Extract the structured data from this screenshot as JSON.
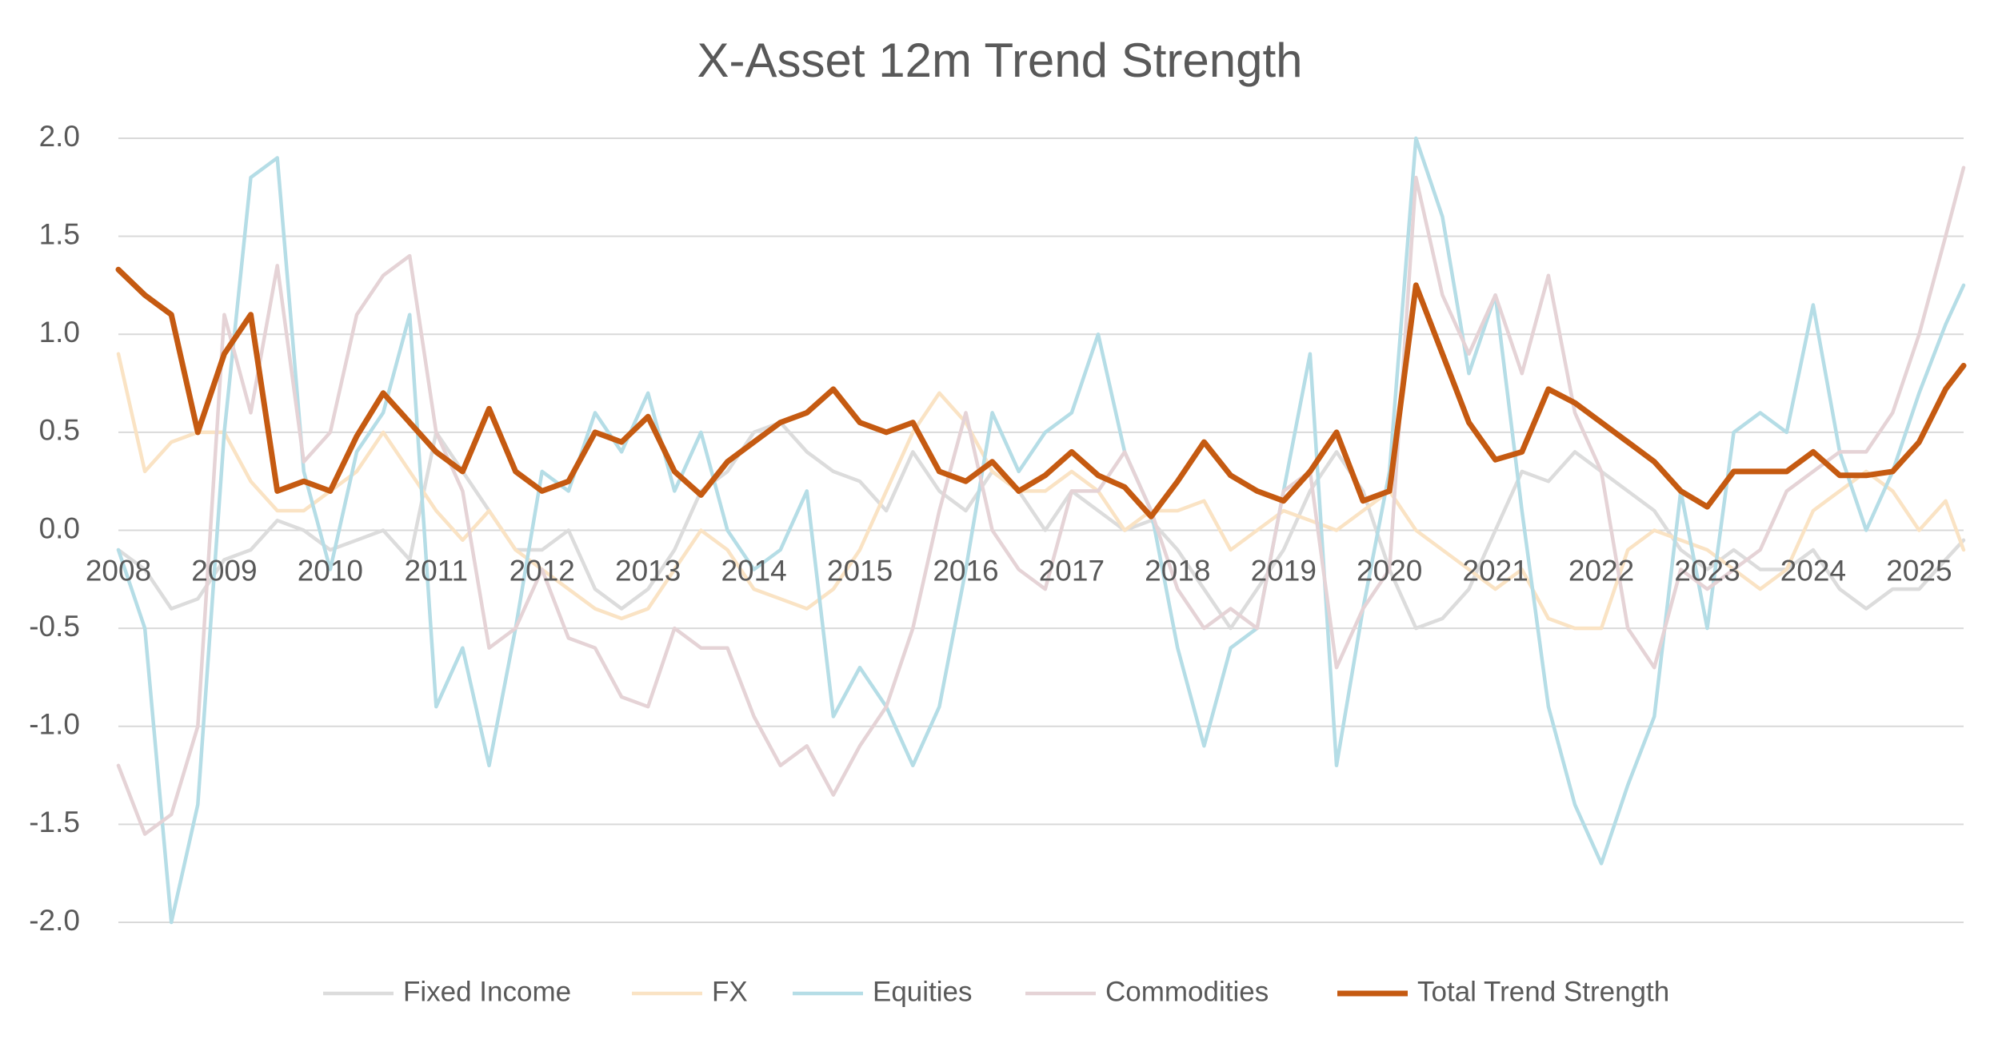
{
  "chart_data": {
    "type": "line",
    "title": "X-Asset 12m Trend Strength",
    "x": [
      2008,
      2008.25,
      2008.5,
      2008.75,
      2009,
      2009.25,
      2009.5,
      2009.75,
      2010,
      2010.25,
      2010.5,
      2010.75,
      2011,
      2011.25,
      2011.5,
      2011.75,
      2012,
      2012.25,
      2012.5,
      2012.75,
      2013,
      2013.25,
      2013.5,
      2013.75,
      2014,
      2014.25,
      2014.5,
      2014.75,
      2015,
      2015.25,
      2015.5,
      2015.75,
      2016,
      2016.25,
      2016.5,
      2016.75,
      2017,
      2017.25,
      2017.5,
      2017.75,
      2018,
      2018.25,
      2018.5,
      2018.75,
      2019,
      2019.25,
      2019.5,
      2019.75,
      2020,
      2020.25,
      2020.5,
      2020.75,
      2021,
      2021.25,
      2021.5,
      2021.75,
      2022,
      2022.25,
      2022.5,
      2022.75,
      2023,
      2023.25,
      2023.5,
      2023.75,
      2024,
      2024.25,
      2024.5,
      2024.75,
      2025,
      2025.25,
      2025.42
    ],
    "xlim": [
      2008,
      2025.42
    ],
    "xticks": [
      2008,
      2009,
      2010,
      2011,
      2012,
      2013,
      2014,
      2015,
      2016,
      2017,
      2018,
      2019,
      2020,
      2021,
      2022,
      2023,
      2024,
      2025
    ],
    "ylim": [
      -2,
      2
    ],
    "yticks": [
      {
        "value": -2,
        "label": "-2.0"
      },
      -1.5,
      {
        "value": -1,
        "label": "-1.0"
      },
      -0.5,
      {
        "value": 0,
        "label": "0.0"
      },
      0.5,
      {
        "value": 1,
        "label": "1.0"
      },
      1.5,
      {
        "value": 2,
        "label": "2.0"
      }
    ],
    "grid": true,
    "legend": "bottom",
    "series": [
      {
        "name": "Fixed Income",
        "color": "#dcdcdc",
        "values": [
          -0.1,
          -0.2,
          -0.4,
          -0.35,
          -0.15,
          -0.1,
          0.05,
          0.0,
          -0.1,
          -0.05,
          0.0,
          -0.15,
          0.5,
          0.3,
          0.1,
          -0.1,
          -0.1,
          0.0,
          -0.3,
          -0.4,
          -0.3,
          -0.1,
          0.2,
          0.3,
          0.5,
          0.55,
          0.4,
          0.3,
          0.25,
          0.1,
          0.4,
          0.2,
          0.1,
          0.3,
          0.2,
          0.0,
          0.2,
          0.1,
          0.0,
          0.05,
          -0.1,
          -0.3,
          -0.5,
          -0.3,
          -0.1,
          0.2,
          0.4,
          0.2,
          -0.2,
          -0.5,
          -0.45,
          -0.3,
          0.0,
          0.3,
          0.25,
          0.4,
          0.3,
          0.2,
          0.1,
          -0.1,
          -0.2,
          -0.1,
          -0.2,
          -0.2,
          -0.1,
          -0.3,
          -0.4,
          -0.3,
          -0.3,
          -0.15,
          -0.05
        ]
      },
      {
        "name": "FX",
        "color": "#fae3c4",
        "values": [
          0.9,
          0.3,
          0.45,
          0.5,
          0.5,
          0.25,
          0.1,
          0.1,
          0.2,
          0.3,
          0.5,
          0.3,
          0.1,
          -0.05,
          0.1,
          -0.1,
          -0.2,
          -0.3,
          -0.4,
          -0.45,
          -0.4,
          -0.2,
          0.0,
          -0.1,
          -0.3,
          -0.35,
          -0.4,
          -0.3,
          -0.1,
          0.2,
          0.5,
          0.7,
          0.55,
          0.3,
          0.2,
          0.2,
          0.3,
          0.2,
          0.0,
          0.1,
          0.1,
          0.15,
          -0.1,
          0.0,
          0.1,
          0.05,
          0.0,
          0.1,
          0.2,
          0.0,
          -0.1,
          -0.2,
          -0.3,
          -0.2,
          -0.45,
          -0.5,
          -0.5,
          -0.1,
          0.0,
          -0.05,
          -0.1,
          -0.2,
          -0.3,
          -0.2,
          0.1,
          0.2,
          0.3,
          0.2,
          0.0,
          0.15,
          -0.1
        ]
      },
      {
        "name": "Equities",
        "color": "#b5dde6",
        "values": [
          -0.1,
          -0.5,
          -2.0,
          -1.4,
          0.5,
          1.8,
          1.9,
          0.3,
          -0.2,
          0.4,
          0.6,
          1.1,
          -0.9,
          -0.6,
          -1.2,
          -0.5,
          0.3,
          0.2,
          0.6,
          0.4,
          0.7,
          0.2,
          0.5,
          0.0,
          -0.2,
          -0.1,
          0.2,
          -0.95,
          -0.7,
          -0.9,
          -1.2,
          -0.9,
          -0.2,
          0.6,
          0.3,
          0.5,
          0.6,
          1.0,
          0.4,
          0.1,
          -0.6,
          -1.1,
          -0.6,
          -0.5,
          0.2,
          0.9,
          -1.2,
          -0.4,
          0.3,
          2.0,
          1.6,
          0.8,
          1.2,
          0.1,
          -0.9,
          -1.4,
          -1.7,
          -1.3,
          -0.95,
          0.2,
          -0.5,
          0.5,
          0.6,
          0.5,
          1.15,
          0.4,
          0.0,
          0.3,
          0.7,
          1.05,
          1.25
        ]
      },
      {
        "name": "Commodities",
        "color": "#e5d3d6",
        "values": [
          -1.2,
          -1.55,
          -1.45,
          -1.0,
          1.1,
          0.6,
          1.35,
          0.35,
          0.5,
          1.1,
          1.3,
          1.4,
          0.5,
          0.2,
          -0.6,
          -0.5,
          -0.2,
          -0.55,
          -0.6,
          -0.85,
          -0.9,
          -0.5,
          -0.6,
          -0.6,
          -0.95,
          -1.2,
          -1.1,
          -1.35,
          -1.1,
          -0.9,
          -0.5,
          0.1,
          0.6,
          0.0,
          -0.2,
          -0.3,
          0.2,
          0.2,
          0.4,
          0.1,
          -0.3,
          -0.5,
          -0.4,
          -0.5,
          0.2,
          0.3,
          -0.7,
          -0.4,
          -0.2,
          1.8,
          1.2,
          0.9,
          1.2,
          0.8,
          1.3,
          0.6,
          0.3,
          -0.5,
          -0.7,
          -0.2,
          -0.3,
          -0.2,
          -0.1,
          0.2,
          0.3,
          0.4,
          0.4,
          0.6,
          1.0,
          1.5,
          1.85
        ]
      },
      {
        "name": "Total Trend Strength",
        "color": "#c55a11",
        "values": [
          1.33,
          1.2,
          1.1,
          0.5,
          0.9,
          1.1,
          0.2,
          0.25,
          0.2,
          0.48,
          0.7,
          0.55,
          0.4,
          0.3,
          0.62,
          0.3,
          0.2,
          0.25,
          0.5,
          0.45,
          0.58,
          0.3,
          0.18,
          0.35,
          0.45,
          0.55,
          0.6,
          0.72,
          0.55,
          0.5,
          0.55,
          0.3,
          0.25,
          0.35,
          0.2,
          0.28,
          0.4,
          0.28,
          0.22,
          0.07,
          0.25,
          0.45,
          0.28,
          0.2,
          0.15,
          0.3,
          0.5,
          0.15,
          0.2,
          1.25,
          0.9,
          0.55,
          0.36,
          0.4,
          0.72,
          0.65,
          0.55,
          0.45,
          0.35,
          0.2,
          0.12,
          0.3,
          0.3,
          0.3,
          0.4,
          0.28,
          0.28,
          0.3,
          0.45,
          0.72,
          0.84
        ]
      }
    ]
  }
}
